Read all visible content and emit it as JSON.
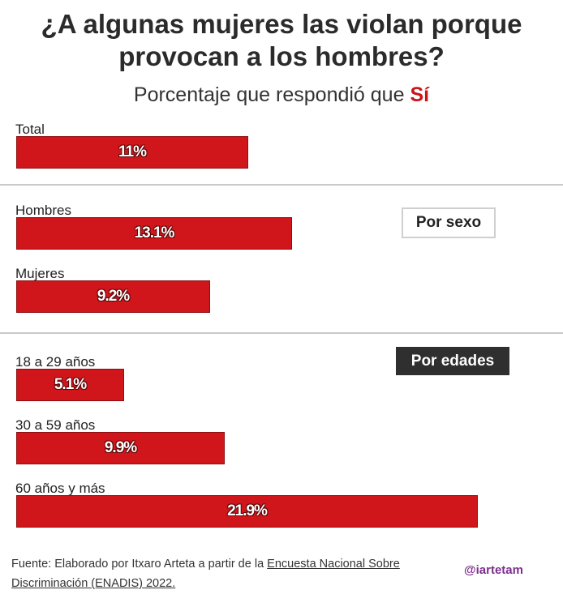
{
  "title_line1": "¿A algunas mujeres las violan porque",
  "title_line2": "provocan a los hombres?",
  "subtitle_prefix": "Porcentaje que respondió que",
  "subtitle_highlight": "Sí",
  "tags": {
    "sexo": "Por sexo",
    "edades": "Por edades"
  },
  "source": {
    "prefix": "Fuente: Elaborado por Itxaro Arteta a partir de la",
    "link_text": "Encuesta Nacional Sobre Discriminación (ENADIS) 2022."
  },
  "handle": "@iartetam",
  "colors": {
    "bar": "#d0151b",
    "highlight": "#c8151b",
    "tag_dark": "#2f2f2f",
    "handle": "#7d2f8f"
  },
  "chart_data": {
    "type": "bar",
    "orientation": "horizontal",
    "title": "¿A algunas mujeres las violan porque provocan a los hombres?",
    "subtitle": "Porcentaje que respondió que Sí",
    "xlim": [
      0,
      23
    ],
    "grid": false,
    "groups": [
      {
        "name": "",
        "bars": [
          {
            "label": "Total",
            "value": 11,
            "display": "11%"
          }
        ]
      },
      {
        "name": "Por sexo",
        "bars": [
          {
            "label": "Hombres",
            "value": 13.1,
            "display": "13.1%"
          },
          {
            "label": "Mujeres",
            "value": 9.2,
            "display": "9.2%"
          }
        ]
      },
      {
        "name": "Por edades",
        "bars": [
          {
            "label": "18 a 29 años",
            "value": 5.1,
            "display": "5.1%"
          },
          {
            "label": "30 a 59 años",
            "value": 9.9,
            "display": "9.9%"
          },
          {
            "label": "60 años y más",
            "value": 21.9,
            "display": "21.9%"
          }
        ]
      }
    ]
  }
}
